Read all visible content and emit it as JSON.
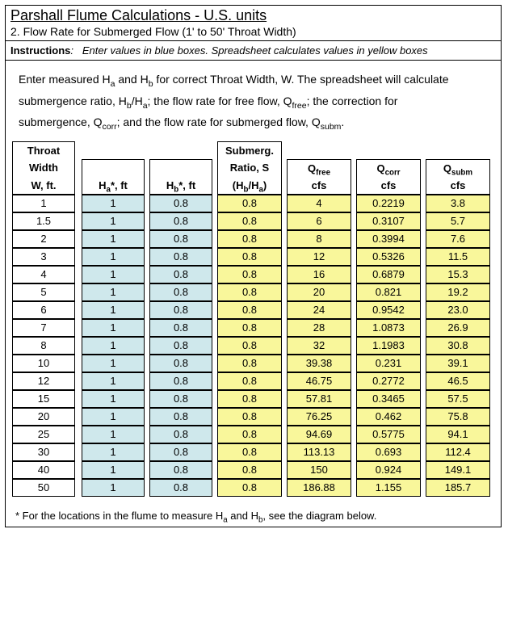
{
  "title": "Parshall Flume Calculations  -  U.S. units",
  "subtitle": "2.  Flow Rate for Submerged Flow (1' to 50' Throat Width)",
  "instructions_label": "Instructions",
  "instructions_text": "Enter values in blue boxes.  Spreadsheet calculates values in yellow boxes",
  "body_line1a": "Enter measured H",
  "body_line1b": " and H",
  "body_line1c": " for correct Throat Width, W.  The spreadsheet will calculate",
  "body_line2a": "submergence ratio, H",
  "body_line2b": "/H",
  "body_line2c": ";  the flow rate for free flow, Q",
  "body_line2d": ";  the correction for",
  "body_line3a": "submergence, Q",
  "body_line3b": ";  and the flow rate for submerged flow, Q",
  "body_line3c": ".",
  "headers": {
    "c0r1": "Throat",
    "c0r2": "Width",
    "c0r3": "W, ft.",
    "c1r3a": "H",
    "c1r3b": "*, ft",
    "c2r3a": "H",
    "c2r3b": "*, ft",
    "c3r1": "Submerg.",
    "c3r2": "Ratio, S",
    "c3r3a": "(H",
    "c3r3b": "/H",
    "c3r3c": ")",
    "c4r2a": "Q",
    "c4r3": "cfs",
    "c5r2a": "Q",
    "c5r3": "cfs",
    "c6r2a": "Q",
    "c6r3": "cfs"
  },
  "rows": [
    {
      "w": "1",
      "ha": "1",
      "hb": "0.8",
      "s": "0.8",
      "qf": "4",
      "qc": "0.2219",
      "qs": "3.8"
    },
    {
      "w": "1.5",
      "ha": "1",
      "hb": "0.8",
      "s": "0.8",
      "qf": "6",
      "qc": "0.3107",
      "qs": "5.7"
    },
    {
      "w": "2",
      "ha": "1",
      "hb": "0.8",
      "s": "0.8",
      "qf": "8",
      "qc": "0.3994",
      "qs": "7.6"
    },
    {
      "w": "3",
      "ha": "1",
      "hb": "0.8",
      "s": "0.8",
      "qf": "12",
      "qc": "0.5326",
      "qs": "11.5"
    },
    {
      "w": "4",
      "ha": "1",
      "hb": "0.8",
      "s": "0.8",
      "qf": "16",
      "qc": "0.6879",
      "qs": "15.3"
    },
    {
      "w": "5",
      "ha": "1",
      "hb": "0.8",
      "s": "0.8",
      "qf": "20",
      "qc": "0.821",
      "qs": "19.2"
    },
    {
      "w": "6",
      "ha": "1",
      "hb": "0.8",
      "s": "0.8",
      "qf": "24",
      "qc": "0.9542",
      "qs": "23.0"
    },
    {
      "w": "7",
      "ha": "1",
      "hb": "0.8",
      "s": "0.8",
      "qf": "28",
      "qc": "1.0873",
      "qs": "26.9"
    },
    {
      "w": "8",
      "ha": "1",
      "hb": "0.8",
      "s": "0.8",
      "qf": "32",
      "qc": "1.1983",
      "qs": "30.8"
    },
    {
      "w": "10",
      "ha": "1",
      "hb": "0.8",
      "s": "0.8",
      "qf": "39.38",
      "qc": "0.231",
      "qs": "39.1"
    },
    {
      "w": "12",
      "ha": "1",
      "hb": "0.8",
      "s": "0.8",
      "qf": "46.75",
      "qc": "0.2772",
      "qs": "46.5"
    },
    {
      "w": "15",
      "ha": "1",
      "hb": "0.8",
      "s": "0.8",
      "qf": "57.81",
      "qc": "0.3465",
      "qs": "57.5"
    },
    {
      "w": "20",
      "ha": "1",
      "hb": "0.8",
      "s": "0.8",
      "qf": "76.25",
      "qc": "0.462",
      "qs": "75.8"
    },
    {
      "w": "25",
      "ha": "1",
      "hb": "0.8",
      "s": "0.8",
      "qf": "94.69",
      "qc": "0.5775",
      "qs": "94.1"
    },
    {
      "w": "30",
      "ha": "1",
      "hb": "0.8",
      "s": "0.8",
      "qf": "113.13",
      "qc": "0.693",
      "qs": "112.4"
    },
    {
      "w": "40",
      "ha": "1",
      "hb": "0.8",
      "s": "0.8",
      "qf": "150",
      "qc": "0.924",
      "qs": "149.1"
    },
    {
      "w": "50",
      "ha": "1",
      "hb": "0.8",
      "s": "0.8",
      "qf": "186.88",
      "qc": "1.155",
      "qs": "185.7"
    }
  ],
  "footnote_a": "* For the locations in the flume to measure H",
  "footnote_b": " and H",
  "footnote_c": ", see the diagram below.",
  "colors": {
    "blue": "#cfe8ec",
    "yellow": "#f9f79b",
    "border": "#000000",
    "text": "#000000",
    "bg": "#ffffff"
  }
}
